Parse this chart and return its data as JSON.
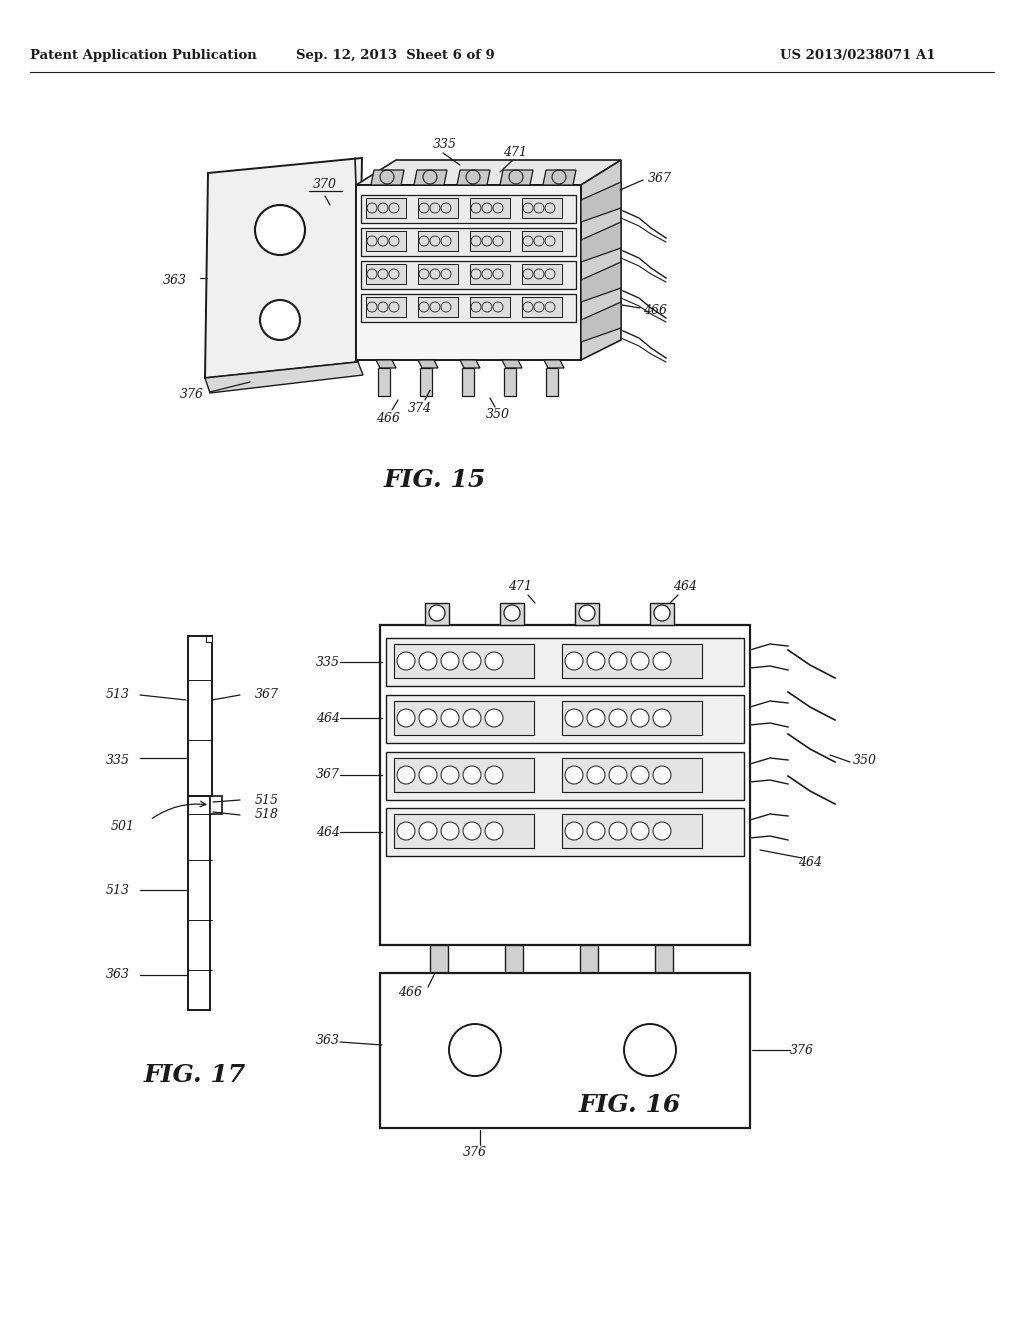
{
  "bg_color": "#ffffff",
  "line_color": "#1a1a1a",
  "text_color": "#1a1a1a",
  "header_left": "Patent Application Publication",
  "header_mid": "Sep. 12, 2013  Sheet 6 of 9",
  "header_right": "US 2013/0238071 A1",
  "fig15_label": "FIG. 15",
  "fig16_label": "FIG. 16",
  "fig17_label": "FIG. 17"
}
